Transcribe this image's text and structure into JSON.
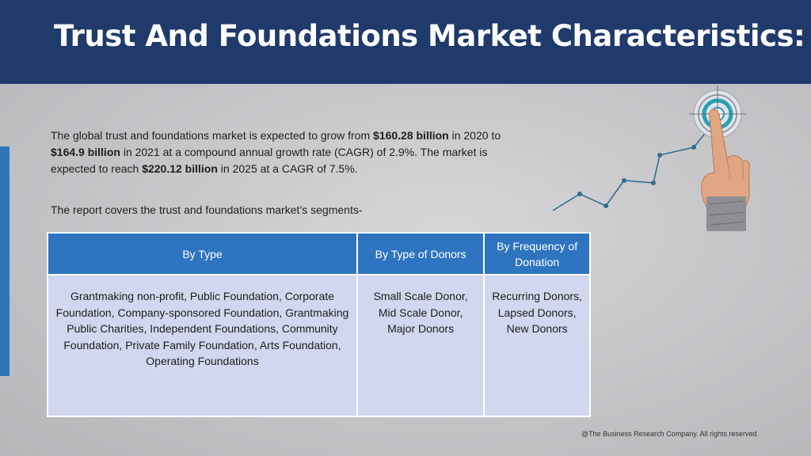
{
  "header": {
    "title": "Trust And Foundations Market Characteristics:"
  },
  "intro": {
    "p1_a": "The global trust and foundations market is expected to grow from ",
    "p1_b": "$160.28 billion",
    "p1_c": " in 2020 to ",
    "p1_d": "$164.9 billion",
    "p1_e": " in 2021 at a compound annual growth rate (CAGR) of 2.9%. The market is expected to reach ",
    "p1_f": "$220.12 billion",
    "p1_g": " in 2025 at a CAGR of 7.5%.",
    "p2": "The report covers the trust and foundations market’s segments-"
  },
  "table": {
    "headers": [
      "By Type",
      "By Type of Donors",
      "By Frequency of Donation"
    ],
    "cells": [
      "Grantmaking non-profit, Public Foundation, Corporate Foundation, Company-sponsored Foundation, Grantmaking Public Charities, Independent Foundations, Community Foundation, Private Family Foundation, Arts Foundation, Operating Foundations",
      "Small Scale Donor, Mid Scale Donor, Major Donors",
      "Recurring Donors, Lapsed Donors, New Donors"
    ]
  },
  "footer": {
    "copyright": "@The Business Research Company. All rights reserved."
  },
  "colors": {
    "header_bg": "#1f3a6b",
    "table_header_bg": "#2e74c0",
    "table_cell_bg": "#d0d7ee",
    "accent_bar": "#2e75b6",
    "graph_line": "#2f6e8f",
    "target_ring": "#2a9fb5"
  },
  "icons": {
    "growth_graphic": "hand-pointing-target-growth-graph-icon"
  }
}
